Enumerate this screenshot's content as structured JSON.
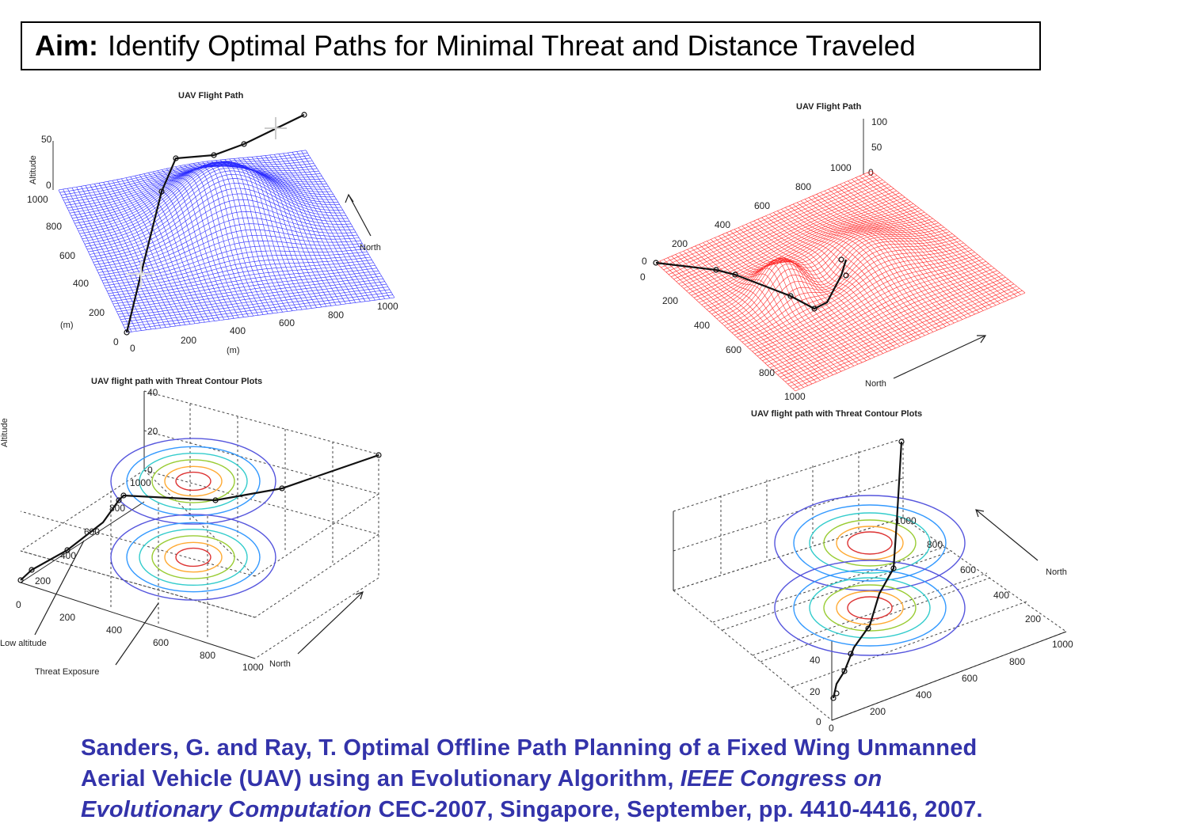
{
  "aim": {
    "label": "Aim:",
    "text": "Identify Optimal  Paths for Minimal Threat and Distance Traveled"
  },
  "plots": {
    "tl": {
      "title": "UAV Flight Path",
      "z_label": "Altitude",
      "z_ticks": [
        "50",
        "0"
      ],
      "y_ticks": [
        "1000",
        "800",
        "600",
        "400",
        "200",
        "0"
      ],
      "x_ticks": [
        "0",
        "200",
        "400",
        "600",
        "800",
        "1000"
      ],
      "y_unit": "(m)",
      "x_unit": "(m)",
      "north": "North",
      "mesh_color": "#2a2aff"
    },
    "tr": {
      "title": "UAV Flight Path",
      "z_ticks": [
        "100",
        "50",
        "0"
      ],
      "y_ticks": [
        "1000",
        "800",
        "600",
        "400",
        "200",
        "0"
      ],
      "x_ticks": [
        "0",
        "200",
        "400",
        "600",
        "800",
        "1000"
      ],
      "north": "North",
      "mesh_color": "#ff2a2a"
    },
    "bl": {
      "title": "UAV flight path with Threat Contour Plots",
      "z_label": "Altitude",
      "z_ticks": [
        "40",
        "20",
        "0"
      ],
      "y_ticks": [
        "1000",
        "800",
        "600",
        "400",
        "200",
        "0"
      ],
      "x_ticks": [
        "200",
        "400",
        "600",
        "800",
        "1000"
      ],
      "north": "North",
      "annotation_low": "Low altitude",
      "annotation_threat": "Threat Exposure"
    },
    "br": {
      "title": "UAV flight path with Threat Contour Plots",
      "y_ticks": [
        "1000",
        "800",
        "600",
        "400",
        "200"
      ],
      "x_ticks": [
        "0",
        "200",
        "400",
        "600",
        "800",
        "1000"
      ],
      "z_ticks": [
        "40",
        "20",
        "0"
      ],
      "north": "North"
    }
  },
  "contour_colors": [
    "#5555dd",
    "#3399ff",
    "#33cccc",
    "#99cc33",
    "#ffaa33",
    "#dd3333",
    "#aa55aa"
  ],
  "citation": {
    "line1": "Sanders, G. and Ray, T. Optimal Offline Path Planning of a Fixed Wing Unmanned",
    "line2_a": "Aerial Vehicle (UAV) using an Evolutionary Algorithm, ",
    "line2_b": "IEEE Congress on",
    "line3_a": "Evolutionary Computation",
    "line3_b": " CEC-2007, Singapore, September, pp. 4410-4416, 2007.",
    "color": "#3333aa"
  }
}
